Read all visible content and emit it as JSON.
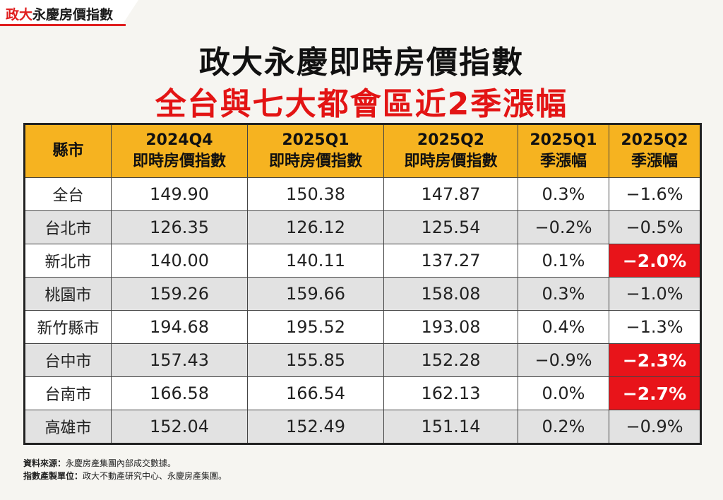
{
  "brand": {
    "part1": "政大",
    "part2": "永慶",
    "part3": "房價指數"
  },
  "title": "政大永慶即時房價指數",
  "subtitle": "全台與七大都會區近2季漲幅",
  "table": {
    "headers": [
      {
        "line1": "縣市",
        "line2": ""
      },
      {
        "line1": "2024Q4",
        "line2": "即時房價指數"
      },
      {
        "line1": "2025Q1",
        "line2": "即時房價指數"
      },
      {
        "line1": "2025Q2",
        "line2": "即時房價指數"
      },
      {
        "line1": "2025Q1",
        "line2": "季漲幅"
      },
      {
        "line1": "2025Q2",
        "line2": "季漲幅"
      }
    ],
    "rows": [
      {
        "city": "全台",
        "q4": "149.90",
        "q1": "150.38",
        "q2": "147.87",
        "chg_q1": "0.3%",
        "chg_q2": "−1.6%",
        "highlight": false
      },
      {
        "city": "台北市",
        "q4": "126.35",
        "q1": "126.12",
        "q2": "125.54",
        "chg_q1": "−0.2%",
        "chg_q2": "−0.5%",
        "highlight": false
      },
      {
        "city": "新北市",
        "q4": "140.00",
        "q1": "140.11",
        "q2": "137.27",
        "chg_q1": "0.1%",
        "chg_q2": "−2.0%",
        "highlight": true
      },
      {
        "city": "桃園市",
        "q4": "159.26",
        "q1": "159.66",
        "q2": "158.08",
        "chg_q1": "0.3%",
        "chg_q2": "−1.0%",
        "highlight": false
      },
      {
        "city": "新竹縣市",
        "q4": "194.68",
        "q1": "195.52",
        "q2": "193.08",
        "chg_q1": "0.4%",
        "chg_q2": "−1.3%",
        "highlight": false
      },
      {
        "city": "台中市",
        "q4": "157.43",
        "q1": "155.85",
        "q2": "152.28",
        "chg_q1": "−0.9%",
        "chg_q2": "−2.3%",
        "highlight": true
      },
      {
        "city": "台南市",
        "q4": "166.58",
        "q1": "166.54",
        "q2": "162.13",
        "chg_q1": "0.0%",
        "chg_q2": "−2.7%",
        "highlight": true
      },
      {
        "city": "高雄市",
        "q4": "152.04",
        "q1": "152.49",
        "q2": "151.14",
        "chg_q1": "0.2%",
        "chg_q2": "−0.9%",
        "highlight": false
      }
    ]
  },
  "footnotes": {
    "source_label": "資料來源：",
    "source_text": "永慶房產集團內部成交數據。",
    "producer_label": "指數產製單位：",
    "producer_text": "政大不動產研究中心、永慶房產集團。"
  },
  "colors": {
    "header_bg": "#f6b320",
    "highlight": "#e8141a",
    "title_red": "#e31414"
  }
}
